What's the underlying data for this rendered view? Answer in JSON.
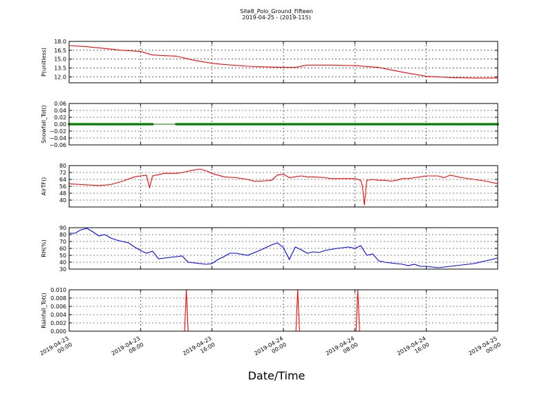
{
  "figure": {
    "title": "Site8_Polo_Ground_Fifteen",
    "subtitle": "2019-04-25 - (2019-115)",
    "xlabel": "Date/Time"
  },
  "chart_data": [
    {
      "type": "line",
      "ylabel": "P(unitless)",
      "ylim": [
        11.0,
        18.0
      ],
      "yticks": [
        "18.0",
        "16.5",
        "15.0",
        "13.5",
        "12.0"
      ],
      "ytick_values": [
        18.0,
        16.5,
        15.0,
        13.5,
        12.0
      ],
      "grid": true,
      "series": [
        {
          "color": "#ff0000",
          "x_hours": [
            0,
            3,
            6,
            9,
            12,
            14,
            16,
            18,
            21,
            24,
            26,
            30,
            33,
            36,
            38,
            40,
            44,
            48,
            52,
            56,
            60,
            64,
            68,
            72
          ],
          "y": [
            17.3,
            17.1,
            16.8,
            16.5,
            16.3,
            15.7,
            15.6,
            15.5,
            14.8,
            14.3,
            14.1,
            13.8,
            13.7,
            13.6,
            13.6,
            14.0,
            14.0,
            13.9,
            13.6,
            12.8,
            12.1,
            11.9,
            11.8,
            11.8
          ]
        }
      ]
    },
    {
      "type": "scatter",
      "ylabel": "Snowfall_Tot()",
      "ylim": [
        -0.06,
        0.06
      ],
      "yticks": [
        "0.06",
        "0.04",
        "0.02",
        "0.00",
        "−0.02",
        "−0.04",
        "−0.06"
      ],
      "ytick_values": [
        0.06,
        0.04,
        0.02,
        0.0,
        -0.02,
        -0.04,
        -0.06
      ],
      "grid": true,
      "series": [
        {
          "color": "#008000",
          "marker_segments_hours": [
            [
              0,
              14
            ],
            [
              18,
              72
            ]
          ],
          "line_segment_hours": [
            0,
            72
          ],
          "value": 0.0
        }
      ]
    },
    {
      "type": "line",
      "ylabel": "AirTF()",
      "ylim": [
        32,
        80
      ],
      "yticks": [
        "80",
        "72",
        "64",
        "56",
        "48",
        "40"
      ],
      "ytick_values": [
        80,
        72,
        64,
        56,
        48,
        40
      ],
      "grid": true,
      "series": [
        {
          "color": "#ff0000",
          "x_hours": [
            0,
            2,
            5,
            7,
            9,
            11,
            12,
            13,
            13.5,
            14,
            16,
            18,
            19,
            21,
            22,
            23,
            24,
            25,
            26,
            28,
            30,
            31,
            32,
            34,
            35,
            36,
            37,
            38,
            39,
            40,
            41,
            43,
            44,
            47,
            48,
            49,
            49.3,
            49.6,
            50,
            51,
            52,
            53,
            54,
            55,
            56,
            57,
            58,
            59,
            60,
            61,
            62,
            63,
            64,
            66,
            68,
            70,
            72
          ],
          "y": [
            59,
            58,
            57,
            58,
            62,
            67,
            68,
            69,
            54,
            68,
            71,
            71,
            72,
            75,
            76,
            74,
            71,
            69,
            67,
            66,
            64,
            62,
            62,
            63,
            69,
            70,
            66,
            67,
            68,
            67,
            67,
            66,
            65,
            65,
            65,
            63,
            56,
            34,
            63,
            64,
            63,
            63,
            62,
            63,
            65,
            65,
            66,
            67,
            68,
            68,
            68,
            66,
            69,
            66,
            64,
            62,
            59
          ]
        }
      ]
    },
    {
      "type": "line",
      "ylabel": "RH(%)",
      "ylim": [
        30,
        90
      ],
      "yticks": [
        "90",
        "80",
        "70",
        "60",
        "50",
        "40",
        "30"
      ],
      "ytick_values": [
        90,
        80,
        70,
        60,
        50,
        40,
        30
      ],
      "grid": true,
      "series": [
        {
          "color": "#0000ff",
          "x_hours": [
            0,
            1,
            2,
            3,
            4,
            5,
            6,
            7,
            8,
            10,
            11,
            12,
            13,
            14,
            15,
            17,
            19,
            20,
            21,
            23,
            24,
            25,
            26,
            27,
            28,
            30,
            32,
            34,
            35,
            36,
            37,
            38,
            39,
            40,
            41,
            42,
            43,
            45,
            47,
            48,
            49,
            50,
            51,
            52,
            53,
            55,
            56,
            57,
            58,
            59,
            60,
            61,
            62,
            64,
            66,
            68,
            70,
            72
          ],
          "y": [
            82,
            82,
            87,
            89,
            84,
            78,
            80,
            75,
            72,
            68,
            62,
            57,
            53,
            56,
            45,
            47,
            49,
            40,
            39,
            37,
            38,
            44,
            48,
            53,
            53,
            50,
            57,
            65,
            68,
            61,
            44,
            62,
            58,
            53,
            55,
            54,
            57,
            60,
            62,
            60,
            64,
            50,
            52,
            42,
            40,
            38,
            37,
            35,
            37,
            34,
            34,
            33,
            32,
            34,
            36,
            38,
            42,
            46
          ]
        }
      ]
    },
    {
      "type": "line",
      "ylabel": "Rainfall_Tot()",
      "ylim": [
        0.0,
        0.01
      ],
      "yticks": [
        "0.010",
        "0.008",
        "0.006",
        "0.004",
        "0.002",
        "0.000"
      ],
      "ytick_values": [
        0.01,
        0.008,
        0.006,
        0.004,
        0.002,
        0.0
      ],
      "grid": true,
      "series": [
        {
          "color": "#ff0000",
          "x_hours": [
            0,
            19.4,
            19.7,
            20.0,
            38.1,
            38.4,
            38.7,
            48.2,
            48.5,
            48.8,
            72
          ],
          "y": [
            0,
            0,
            0.01,
            0,
            0,
            0.01,
            0,
            0,
            0.01,
            0,
            0
          ]
        }
      ]
    }
  ],
  "x_axis": {
    "tick_hours": [
      0,
      12,
      24,
      36,
      48,
      60,
      72
    ],
    "tick_labels": [
      [
        "2019-04-23",
        "00:00"
      ],
      [
        "2019-04-23",
        "08:00"
      ],
      [
        "2019-04-23",
        "16:00"
      ],
      [
        "2019-04-24",
        "00:00"
      ],
      [
        "2019-04-24",
        "08:00"
      ],
      [
        "2019-04-24",
        "16:00"
      ],
      [
        "2019-04-25",
        "00:00"
      ]
    ]
  }
}
